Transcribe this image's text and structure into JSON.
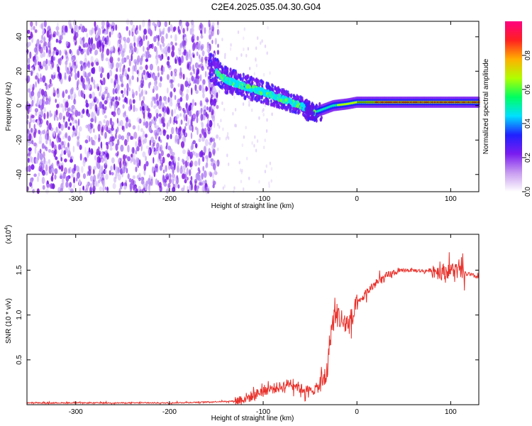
{
  "title": "C2E4.2025.035.04.30.G04",
  "chart_data": [
    {
      "type": "heatmap",
      "xlabel": "Height of straight line (km)",
      "ylabel": "Frequency (Hz)",
      "xlim": [
        -352,
        130
      ],
      "ylim": [
        -50,
        49
      ],
      "xticks": [
        -300,
        -200,
        -100,
        0,
        100
      ],
      "yticks": [
        40,
        20,
        0,
        -20,
        -40
      ],
      "colorbar": {
        "label": "Normalized spectral amplitude",
        "range": [
          0.0,
          1.0
        ],
        "ticks": [
          0.0,
          0.2,
          0.4,
          0.6,
          0.8
        ],
        "colors": [
          "#ffffff",
          "#c89cf0",
          "#7a1cf0",
          "#2020ff",
          "#00e0ff",
          "#00ff60",
          "#b0ff00",
          "#ffb000",
          "#ff2020",
          "#ff0080"
        ]
      },
      "ridge": {
        "x": [
          -155,
          -140,
          -120,
          -100,
          -80,
          -60,
          -45,
          -35,
          -25,
          -10,
          0,
          20,
          60,
          100,
          130
        ],
        "y": [
          22,
          15,
          11,
          8,
          4,
          0,
          -4,
          -2,
          0,
          1,
          2,
          2,
          2,
          2,
          2
        ]
      }
    },
    {
      "type": "line",
      "xlabel": "Height of straight line (km)",
      "ylabel": "SNR (10 * v/v)",
      "y_multiplier": "(x10",
      "y_multiplier_exp": "4",
      "xlim": [
        -352,
        130
      ],
      "ylim": [
        0,
        1.9
      ],
      "xticks": [
        -300,
        -200,
        -100,
        0,
        100
      ],
      "yticks": [
        0.5,
        1.0,
        1.5
      ],
      "color": "#e8302a",
      "series": [
        {
          "x": [
            -352,
            -300,
            -250,
            -200,
            -160,
            -130,
            -110,
            -100,
            -80,
            -70,
            -60,
            -50,
            -40,
            -32,
            -28,
            -25,
            -22,
            -20,
            -15,
            -10,
            -5,
            0,
            10,
            20,
            30,
            40,
            50,
            60,
            70,
            80,
            90,
            100,
            105,
            110,
            120,
            130
          ],
          "y": [
            0.02,
            0.02,
            0.02,
            0.02,
            0.03,
            0.04,
            0.1,
            0.16,
            0.2,
            0.25,
            0.18,
            0.15,
            0.2,
            0.35,
            0.8,
            0.95,
            1.0,
            1.0,
            0.92,
            0.9,
            0.95,
            1.1,
            1.25,
            1.35,
            1.42,
            1.47,
            1.5,
            1.5,
            1.49,
            1.5,
            1.48,
            1.5,
            1.5,
            1.48,
            1.45,
            1.42
          ]
        }
      ]
    }
  ]
}
